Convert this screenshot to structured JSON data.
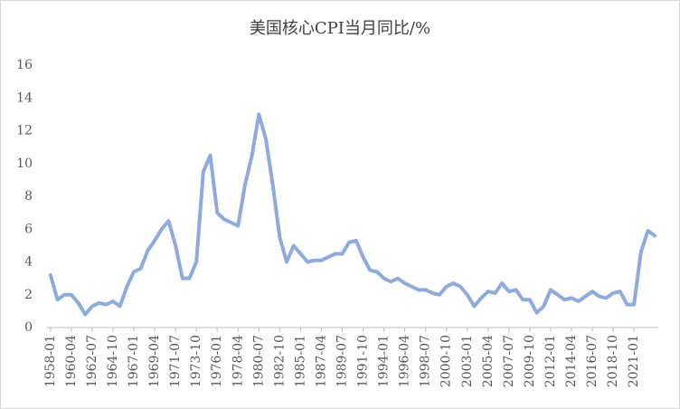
{
  "chart_data": {
    "type": "line",
    "title": "美国核心CPI当月同比/%",
    "categories": [
      "1958-01",
      null,
      null,
      "1960-04",
      null,
      null,
      "1962-07",
      null,
      null,
      "1964-10",
      null,
      null,
      "1967-01",
      null,
      null,
      "1969-04",
      null,
      null,
      "1971-07",
      null,
      null,
      "1973-10",
      null,
      null,
      "1976-01",
      null,
      null,
      "1978-04",
      null,
      null,
      "1980-07",
      null,
      null,
      "1982-10",
      null,
      null,
      "1985-01",
      null,
      null,
      "1987-04",
      null,
      null,
      "1989-07",
      null,
      null,
      "1991-10",
      null,
      null,
      "1994-01",
      null,
      null,
      "1996-04",
      null,
      null,
      "1998-07",
      null,
      null,
      "2000-10",
      null,
      null,
      "2003-01",
      null,
      null,
      "2005-04",
      null,
      null,
      "2007-07",
      null,
      null,
      "2009-10",
      null,
      null,
      "2012-01",
      null,
      null,
      "2014-04",
      null,
      null,
      "2016-07",
      null,
      null,
      "2018-10",
      null,
      null,
      "2021-01",
      null,
      null,
      null
    ],
    "series": [
      {
        "name": "美国核心CPI当月同比",
        "color": "#8faadc",
        "values": [
          3.2,
          1.7,
          2.0,
          2.0,
          1.5,
          0.8,
          1.3,
          1.5,
          1.4,
          1.6,
          1.3,
          2.5,
          3.4,
          3.6,
          4.7,
          5.3,
          6.0,
          6.5,
          5.0,
          3.0,
          3.0,
          4.0,
          9.5,
          10.5,
          7.0,
          6.6,
          6.4,
          6.2,
          8.7,
          10.5,
          13.0,
          11.5,
          8.7,
          5.5,
          4.0,
          5.0,
          4.5,
          4.0,
          4.1,
          4.1,
          4.3,
          4.5,
          4.5,
          5.2,
          5.3,
          4.3,
          3.5,
          3.4,
          3.0,
          2.8,
          3.0,
          2.7,
          2.5,
          2.3,
          2.3,
          2.1,
          2.0,
          2.5,
          2.7,
          2.5,
          2.0,
          1.3,
          1.8,
          2.2,
          2.1,
          2.7,
          2.2,
          2.3,
          1.7,
          1.7,
          0.9,
          1.3,
          2.3,
          2.0,
          1.7,
          1.8,
          1.6,
          1.9,
          2.2,
          1.9,
          1.8,
          2.1,
          2.2,
          1.4,
          1.4,
          4.6,
          5.9,
          5.6
        ]
      }
    ],
    "ylim": [
      0,
      16
    ],
    "yticks": [
      0,
      2,
      4,
      6,
      8,
      10,
      12,
      14,
      16
    ],
    "grid": false
  }
}
